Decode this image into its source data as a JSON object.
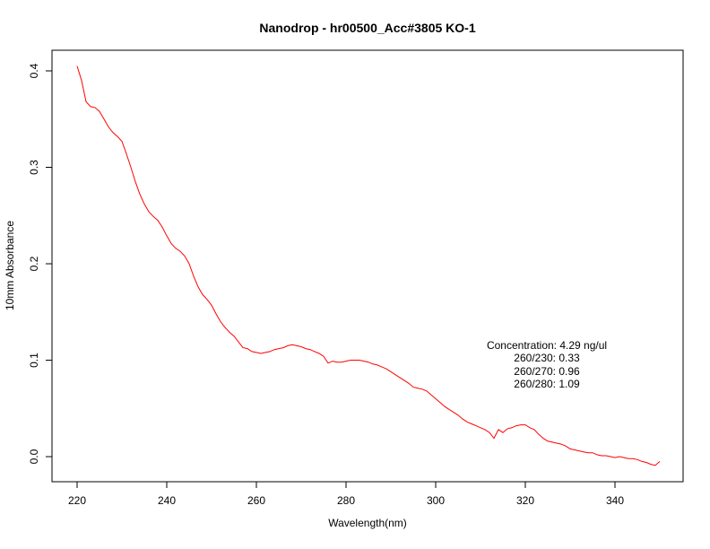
{
  "window": {
    "background_color": "#ffffff"
  },
  "chart_data": {
    "type": "line",
    "title": "Nanodrop - hr00500_Acc#3805  KO-1",
    "xlabel": "Wavelength(nm)",
    "ylabel": "10mm Absorbance",
    "x_ticks": [
      220,
      240,
      260,
      280,
      300,
      320,
      340
    ],
    "y_ticks": [
      0.0,
      0.1,
      0.2,
      0.3,
      0.4
    ],
    "xlim": [
      214.4,
      355.2
    ],
    "ylim": [
      -0.026,
      0.4214
    ],
    "grid": false,
    "legend": "none",
    "line_color": "#ff0000",
    "frame_color": "#000000",
    "annotation": {
      "lines": [
        "Concentration: 4.29 ng/ul",
        "260/230: 0.33",
        "260/270: 0.96",
        "260/280: 1.09"
      ]
    },
    "series": [
      {
        "name": "10mm Absorbance",
        "x": [
          220,
          221,
          222,
          223,
          224,
          225,
          226,
          227,
          228,
          229,
          230,
          231,
          232,
          233,
          234,
          235,
          236,
          237,
          238,
          239,
          240,
          241,
          242,
          243,
          244,
          245,
          246,
          247,
          248,
          249,
          250,
          251,
          252,
          253,
          254,
          255,
          256,
          257,
          258,
          259,
          260,
          261,
          262,
          263,
          264,
          265,
          266,
          267,
          268,
          269,
          270,
          271,
          272,
          273,
          274,
          275,
          276,
          277,
          278,
          279,
          280,
          281,
          282,
          283,
          284,
          285,
          286,
          287,
          288,
          289,
          290,
          291,
          292,
          293,
          294,
          295,
          296,
          297,
          298,
          299,
          300,
          301,
          302,
          303,
          304,
          305,
          306,
          307,
          308,
          309,
          310,
          311,
          312,
          313,
          314,
          315,
          316,
          317,
          318,
          319,
          320,
          321,
          322,
          323,
          324,
          325,
          326,
          327,
          328,
          329,
          330,
          331,
          332,
          333,
          334,
          335,
          336,
          337,
          338,
          339,
          340,
          341,
          342,
          343,
          344,
          345,
          346,
          347,
          348,
          349,
          350
        ],
        "y": [
          0.405,
          0.39,
          0.368,
          0.363,
          0.362,
          0.358,
          0.35,
          0.342,
          0.336,
          0.332,
          0.327,
          0.314,
          0.3,
          0.285,
          0.272,
          0.262,
          0.254,
          0.249,
          0.245,
          0.238,
          0.229,
          0.221,
          0.216,
          0.213,
          0.208,
          0.2,
          0.187,
          0.176,
          0.168,
          0.163,
          0.157,
          0.148,
          0.14,
          0.134,
          0.129,
          0.125,
          0.119,
          0.113,
          0.112,
          0.109,
          0.108,
          0.107,
          0.108,
          0.109,
          0.111,
          0.112,
          0.113,
          0.115,
          0.116,
          0.115,
          0.114,
          0.112,
          0.111,
          0.109,
          0.107,
          0.104,
          0.097,
          0.099,
          0.098,
          0.098,
          0.099,
          0.1,
          0.1,
          0.1,
          0.099,
          0.098,
          0.096,
          0.095,
          0.093,
          0.091,
          0.088,
          0.085,
          0.082,
          0.079,
          0.076,
          0.072,
          0.071,
          0.07,
          0.068,
          0.064,
          0.06,
          0.056,
          0.052,
          0.049,
          0.046,
          0.043,
          0.039,
          0.036,
          0.034,
          0.032,
          0.03,
          0.028,
          0.025,
          0.019,
          0.028,
          0.025,
          0.029,
          0.03,
          0.032,
          0.033,
          0.033,
          0.03,
          0.028,
          0.023,
          0.019,
          0.016,
          0.015,
          0.014,
          0.013,
          0.011,
          0.008,
          0.007,
          0.006,
          0.005,
          0.004,
          0.004,
          0.002,
          0.001,
          0.001,
          0.0,
          -0.001,
          0.0,
          -0.001,
          -0.002,
          -0.002,
          -0.003,
          -0.005,
          -0.006,
          -0.008,
          -0.009,
          -0.005
        ]
      }
    ]
  }
}
